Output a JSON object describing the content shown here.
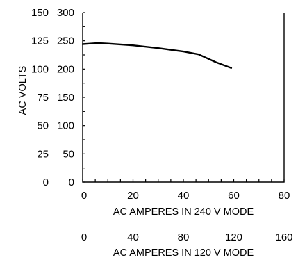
{
  "chart_data": {
    "type": "line",
    "x_primary": {
      "label": "AC AMPERES IN 240 V MODE",
      "range": [
        0,
        80
      ],
      "ticks": [
        "0",
        "20",
        "40",
        "60",
        "80"
      ]
    },
    "x_secondary": {
      "label": "AC AMPERES IN 120 V MODE",
      "range": [
        0,
        160
      ],
      "ticks": [
        "0",
        "40",
        "80",
        "120",
        "160"
      ]
    },
    "y_left": {
      "label": "AC VOLTS",
      "range": [
        0,
        150
      ],
      "ticks": [
        "150",
        "125",
        "100",
        "75",
        "50",
        "25",
        "0"
      ]
    },
    "y_right": {
      "range": [
        0,
        300
      ],
      "ticks": [
        "300",
        "250",
        "200",
        "150",
        "100",
        "50",
        "0"
      ]
    },
    "series": [
      {
        "x": [
          0,
          3,
          6,
          10,
          20,
          30,
          40,
          46,
          53,
          59
        ],
        "y": [
          244,
          245,
          246,
          245,
          242,
          237,
          231,
          226,
          212,
          202
        ]
      }
    ],
    "grid": false,
    "line_color": "#000000"
  }
}
